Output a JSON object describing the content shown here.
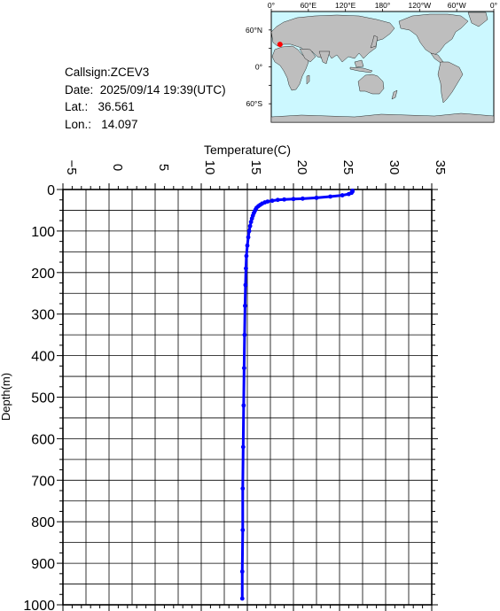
{
  "info": {
    "callsign": "Callsign:ZCEV3",
    "date": "Date:  2025/09/14 19:39(UTC)",
    "lat": "Lat.:   36.561",
    "lon": "Lon.:   14.097"
  },
  "map": {
    "lon_labels": [
      "0°",
      "60°E",
      "120°E",
      "180°",
      "120°W",
      "60°W",
      "0°"
    ],
    "lat_labels": [
      "60°N",
      "0°",
      "60°S"
    ],
    "marker": {
      "lat": 36.561,
      "lon": 14.097
    },
    "colors": {
      "ocean": "#ccf8ff",
      "land": "#bebebe",
      "marker": "#ff0000"
    }
  },
  "chart_data": {
    "type": "scatter",
    "xlabel": "Temperature(C)",
    "ylabel": "Depth(m)",
    "xlim": [
      -5,
      35
    ],
    "ylim": [
      1000,
      0
    ],
    "x_ticks": [
      "-5",
      "0",
      "5",
      "10",
      "15",
      "20",
      "25",
      "30",
      "35"
    ],
    "y_ticks": [
      "0",
      "100",
      "200",
      "300",
      "400",
      "500",
      "600",
      "700",
      "800",
      "900",
      "1000"
    ],
    "color": "#0000ff",
    "series": [
      {
        "points": [
          [
            26.4,
            3
          ],
          [
            26.4,
            5
          ],
          [
            26.3,
            8
          ],
          [
            26.0,
            11
          ],
          [
            25.3,
            14
          ],
          [
            24.0,
            17
          ],
          [
            22.5,
            20
          ],
          [
            21.0,
            22
          ],
          [
            20.0,
            23
          ],
          [
            19.0,
            24
          ],
          [
            18.3,
            25
          ],
          [
            17.7,
            27
          ],
          [
            17.2,
            29
          ],
          [
            16.9,
            31
          ],
          [
            16.6,
            34
          ],
          [
            16.4,
            37
          ],
          [
            16.2,
            40
          ],
          [
            16.0,
            44
          ],
          [
            15.9,
            48
          ],
          [
            15.8,
            52
          ],
          [
            15.7,
            57
          ],
          [
            15.6,
            63
          ],
          [
            15.5,
            70
          ],
          [
            15.4,
            78
          ],
          [
            15.3,
            88
          ],
          [
            15.2,
            100
          ],
          [
            15.1,
            115
          ],
          [
            15.0,
            135
          ],
          [
            14.9,
            160
          ],
          [
            14.85,
            190
          ],
          [
            14.8,
            230
          ],
          [
            14.75,
            280
          ],
          [
            14.7,
            350
          ],
          [
            14.65,
            430
          ],
          [
            14.6,
            520
          ],
          [
            14.55,
            620
          ],
          [
            14.5,
            720
          ],
          [
            14.5,
            820
          ],
          [
            14.45,
            920
          ],
          [
            14.45,
            985
          ]
        ]
      }
    ]
  }
}
